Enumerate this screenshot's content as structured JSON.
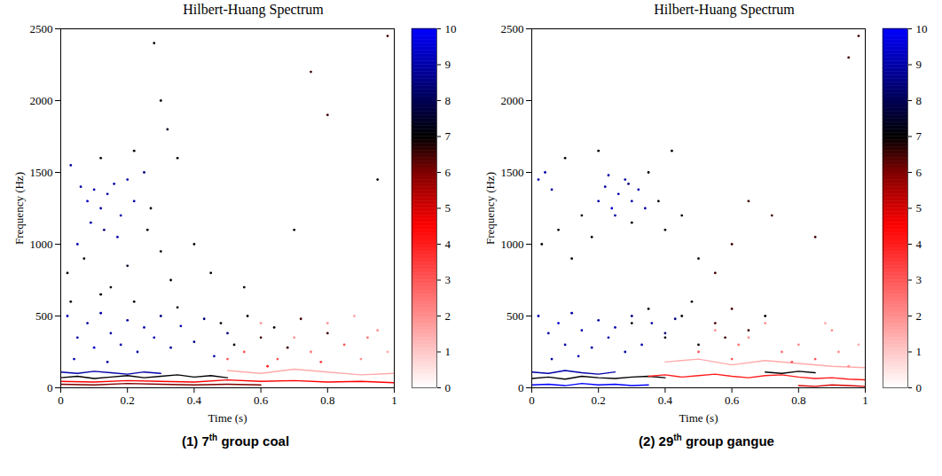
{
  "chart_data": [
    {
      "type": "scatter",
      "title": "Hilbert-Huang Spectrum",
      "caption": "(1) 7th group coal",
      "xlabel": "Time (s)",
      "ylabel": "Frequency (Hz)",
      "xlim": [
        0,
        1
      ],
      "xticks": [
        0,
        0.2,
        0.4,
        0.6,
        0.8,
        1
      ],
      "ylim": [
        0,
        2500
      ],
      "yticks": [
        0,
        500,
        1000,
        1500,
        2000,
        2500
      ],
      "colorbar": {
        "range": [
          0,
          10
        ],
        "ticks": [
          0,
          1,
          2,
          3,
          4,
          5,
          6,
          7,
          8,
          9,
          10
        ]
      },
      "points": {
        "t": [
          0.03,
          0.06,
          0.08,
          0.1,
          0.12,
          0.14,
          0.16,
          0.18,
          0.2,
          0.22,
          0.05,
          0.09,
          0.13,
          0.17,
          0.25,
          0.02,
          0.07,
          0.15,
          0.2,
          0.26,
          0.3,
          0.33,
          0.28,
          0.3,
          0.32,
          0.35,
          0.27,
          0.4,
          0.45,
          0.55,
          0.7,
          0.75,
          0.8,
          0.95,
          0.98,
          0.22,
          0.12,
          0.02,
          0.05,
          0.08,
          0.1,
          0.12,
          0.15,
          0.18,
          0.2,
          0.23,
          0.25,
          0.28,
          0.3,
          0.33,
          0.36,
          0.4,
          0.43,
          0.46,
          0.5,
          0.04,
          0.14,
          0.03,
          0.12,
          0.22,
          0.35,
          0.48,
          0.52,
          0.56,
          0.6,
          0.64,
          0.68,
          0.72,
          0.8,
          0.55,
          0.6,
          0.65,
          0.7,
          0.75,
          0.8,
          0.85,
          0.9,
          0.95,
          0.62,
          0.78,
          0.88,
          0.92,
          0.98,
          0.5
        ],
        "f": [
          1550,
          1400,
          1300,
          1380,
          1250,
          1350,
          1420,
          1200,
          1450,
          1300,
          1000,
          1150,
          1100,
          1050,
          1500,
          800,
          900,
          700,
          850,
          1100,
          950,
          750,
          2400,
          2000,
          1800,
          1600,
          1250,
          1000,
          800,
          700,
          1100,
          2200,
          1900,
          1450,
          2450,
          1650,
          1600,
          500,
          350,
          450,
          280,
          520,
          380,
          300,
          470,
          250,
          420,
          350,
          500,
          280,
          430,
          320,
          480,
          220,
          380,
          200,
          180,
          600,
          650,
          600,
          560,
          450,
          300,
          500,
          350,
          420,
          280,
          480,
          380,
          250,
          450,
          200,
          350,
          250,
          450,
          300,
          200,
          400,
          150,
          180,
          500,
          350,
          250,
          200
        ],
        "v": [
          9,
          9,
          9.5,
          9,
          9,
          9,
          9,
          9,
          9,
          9,
          9,
          9,
          8.5,
          9,
          8.5,
          7,
          7,
          7,
          7.5,
          7,
          7,
          7,
          7,
          7,
          7.5,
          7,
          7,
          7,
          7,
          7,
          7,
          6.5,
          6.5,
          7,
          6.5,
          7,
          7,
          9,
          9,
          9,
          9.5,
          9,
          9,
          9,
          9,
          9,
          9,
          9,
          8.5,
          9,
          9,
          8.5,
          8.5,
          9,
          8.5,
          9,
          9,
          7,
          7,
          7,
          7,
          7,
          7,
          7,
          6.5,
          7,
          6.5,
          6.5,
          6.5,
          3,
          2,
          3,
          2,
          2.5,
          2,
          3,
          2,
          2,
          4,
          3.5,
          1.5,
          2.5,
          1.5,
          3
        ]
      },
      "ridges": [
        {
          "t": [
            0,
            0.05,
            0.1,
            0.15,
            0.2,
            0.25,
            0.3
          ],
          "f": [
            110,
            100,
            115,
            105,
            95,
            110,
            100
          ],
          "v": 9
        },
        {
          "t": [
            0,
            0.05,
            0.1,
            0.15,
            0.2,
            0.25,
            0.3,
            0.35,
            0.4,
            0.45,
            0.5
          ],
          "f": [
            70,
            80,
            65,
            75,
            85,
            70,
            80,
            90,
            75,
            85,
            70
          ],
          "v": 7
        },
        {
          "t": [
            0,
            0.1,
            0.2,
            0.3,
            0.4,
            0.5,
            0.6,
            0.7,
            0.8,
            0.9,
            1
          ],
          "f": [
            45,
            40,
            50,
            45,
            40,
            55,
            45,
            50,
            40,
            45,
            35
          ],
          "v": 4.5
        },
        {
          "t": [
            0,
            0.1,
            0.2,
            0.3,
            0.4,
            0.5,
            0.6
          ],
          "f": [
            25,
            20,
            30,
            25,
            20,
            25,
            20
          ],
          "v": 6
        },
        {
          "t": [
            0.5,
            0.6,
            0.7,
            0.8,
            0.9,
            1
          ],
          "f": [
            120,
            100,
            130,
            110,
            90,
            100
          ],
          "v": 1.5
        }
      ]
    },
    {
      "type": "scatter",
      "title": "Hilbert-Huang Spectrum",
      "caption": "(2) 29th group gangue",
      "xlabel": "Time (s)",
      "ylabel": "Frequency (Hz)",
      "xlim": [
        0,
        1
      ],
      "xticks": [
        0,
        0.2,
        0.4,
        0.6,
        0.8,
        1
      ],
      "ylim": [
        0,
        2500
      ],
      "yticks": [
        0,
        500,
        1000,
        1500,
        2000,
        2500
      ],
      "colorbar": {
        "range": [
          0,
          10
        ],
        "ticks": [
          0,
          1,
          2,
          3,
          4,
          5,
          6,
          7,
          8,
          9,
          10
        ]
      },
      "points": {
        "t": [
          0.02,
          0.04,
          0.06,
          0.2,
          0.22,
          0.24,
          0.26,
          0.28,
          0.3,
          0.32,
          0.25,
          0.29,
          0.23,
          0.34,
          0.03,
          0.08,
          0.12,
          0.15,
          0.18,
          0.1,
          0.2,
          0.35,
          0.38,
          0.4,
          0.42,
          0.45,
          0.5,
          0.55,
          0.6,
          0.65,
          0.72,
          0.85,
          0.95,
          0.98,
          0.3,
          0.02,
          0.05,
          0.08,
          0.1,
          0.12,
          0.15,
          0.18,
          0.2,
          0.23,
          0.25,
          0.28,
          0.3,
          0.33,
          0.36,
          0.4,
          0.43,
          0.06,
          0.14,
          0.3,
          0.35,
          0.4,
          0.45,
          0.5,
          0.55,
          0.6,
          0.65,
          0.7,
          0.48,
          0.58,
          0.5,
          0.55,
          0.6,
          0.65,
          0.7,
          0.75,
          0.8,
          0.85,
          0.9,
          0.95,
          0.62,
          0.78,
          0.88,
          0.92,
          0.98
        ],
        "f": [
          1450,
          1500,
          1380,
          1300,
          1400,
          1250,
          1350,
          1450,
          1300,
          1380,
          1200,
          1420,
          1480,
          1250,
          1000,
          1100,
          900,
          1200,
          1050,
          1600,
          1650,
          1500,
          1300,
          1100,
          1650,
          1200,
          900,
          800,
          1000,
          1300,
          1200,
          1050,
          2300,
          2450,
          1150,
          500,
          380,
          450,
          300,
          520,
          400,
          280,
          470,
          350,
          420,
          250,
          500,
          300,
          450,
          380,
          480,
          200,
          220,
          450,
          550,
          350,
          500,
          300,
          450,
          550,
          400,
          500,
          600,
          350,
          250,
          400,
          200,
          350,
          450,
          250,
          300,
          200,
          400,
          150,
          300,
          180,
          450,
          250,
          300
        ],
        "v": [
          9,
          9,
          9,
          9,
          9,
          9.5,
          9,
          9,
          9,
          9,
          9,
          8.5,
          9,
          9,
          7,
          7,
          7,
          7,
          7,
          7,
          7,
          7,
          7,
          7,
          7,
          7,
          7,
          6.5,
          6.5,
          6.5,
          6.5,
          6.5,
          6.5,
          6.5,
          7,
          9,
          9,
          9.5,
          9,
          9,
          9,
          9,
          9,
          9,
          9,
          9,
          8.5,
          9,
          9,
          8.5,
          8.5,
          9,
          9,
          7,
          7,
          7,
          7,
          7,
          6.5,
          6.5,
          6.5,
          7,
          7,
          6.5,
          3,
          2,
          3,
          2,
          2,
          2.5,
          2,
          3,
          2,
          2,
          2.5,
          3,
          1.5,
          2,
          1.5
        ]
      },
      "ridges": [
        {
          "t": [
            0,
            0.05,
            0.1,
            0.15,
            0.2,
            0.25,
            0.3,
            0.35
          ],
          "f": [
            20,
            25,
            15,
            30,
            20,
            25,
            15,
            20
          ],
          "v": 10
        },
        {
          "t": [
            0,
            0.05,
            0.1,
            0.15,
            0.2,
            0.25
          ],
          "f": [
            110,
            100,
            120,
            105,
            95,
            110
          ],
          "v": 9
        },
        {
          "t": [
            0,
            0.05,
            0.1,
            0.15,
            0.2,
            0.25,
            0.3,
            0.35,
            0.4
          ],
          "f": [
            65,
            75,
            60,
            80,
            70,
            65,
            75,
            80,
            70
          ],
          "v": 7
        },
        {
          "t": [
            0.35,
            0.4,
            0.45,
            0.5,
            0.55,
            0.6,
            0.65,
            0.7,
            0.75,
            0.8,
            0.85,
            0.9,
            0.95,
            1
          ],
          "f": [
            80,
            90,
            75,
            85,
            95,
            80,
            70,
            85,
            90,
            75,
            65,
            70,
            60,
            55
          ],
          "v": 4
        },
        {
          "t": [
            0.7,
            0.75,
            0.8,
            0.85
          ],
          "f": [
            110,
            100,
            115,
            105
          ],
          "v": 7
        },
        {
          "t": [
            0.4,
            0.5,
            0.6,
            0.7,
            0.8,
            0.9,
            1
          ],
          "f": [
            180,
            200,
            160,
            190,
            170,
            150,
            140
          ],
          "v": 1.5
        },
        {
          "t": [
            0.8,
            0.85,
            0.9,
            0.95,
            1
          ],
          "f": [
            15,
            10,
            20,
            15,
            10
          ],
          "v": 5
        }
      ]
    }
  ]
}
